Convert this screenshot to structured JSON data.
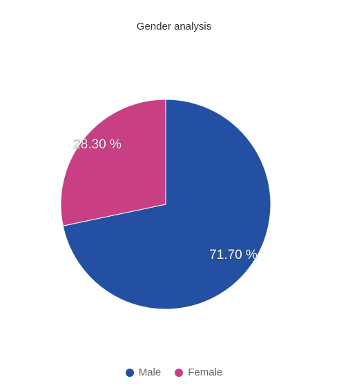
{
  "chart_data": {
    "type": "pie",
    "title": "Gender analysis",
    "categories": [
      "Male",
      "Female"
    ],
    "values": [
      71.7,
      28.3
    ],
    "labels": [
      "71.70 %",
      "28.30 %"
    ],
    "colors": [
      "#2350a3",
      "#c93f83"
    ],
    "legend_position": "bottom"
  }
}
